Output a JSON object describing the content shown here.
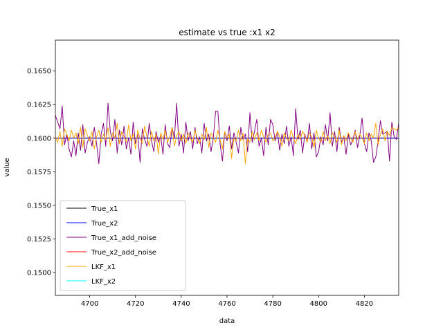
{
  "chart_data": {
    "type": "line",
    "title": "estimate vs true :x1 x2",
    "xlabel": "data",
    "ylabel": "value",
    "xlim": [
      4685,
      4835
    ],
    "ylim": [
      0.1483,
      0.1673
    ],
    "x_ticks": [
      4700,
      4720,
      4740,
      4760,
      4780,
      4800,
      4820
    ],
    "y_ticks": [
      0.15,
      0.1525,
      0.155,
      0.1575,
      0.16,
      0.1625,
      0.165
    ],
    "x_tick_labels": [
      "4700",
      "4720",
      "4740",
      "4760",
      "4780",
      "4800",
      "4820"
    ],
    "y_tick_labels": [
      "0.1500",
      "0.1525",
      "0.1550",
      "0.1575",
      "0.1600",
      "0.1625",
      "0.1650"
    ],
    "grid": false,
    "legend_placement": "lower-left",
    "x_start": 4685,
    "x_step": 1,
    "series": [
      {
        "name": "True_x1",
        "color": "#000000",
        "values": [
          0.16
        ]
      },
      {
        "name": "True_x2",
        "color": "#0000ff",
        "values": [
          0.16
        ]
      },
      {
        "name": "True_x1_add_noise",
        "color": "#800080",
        "values": [
          0.1617,
          0.1612,
          0.1607,
          0.1624,
          0.1595,
          0.1603,
          0.1592,
          0.1586,
          0.1598,
          0.1587,
          0.1604,
          0.1591,
          0.161,
          0.1589,
          0.1597,
          0.1601,
          0.1594,
          0.1608,
          0.1596,
          0.1581,
          0.1603,
          0.1611,
          0.1594,
          0.1626,
          0.1605,
          0.1598,
          0.1614,
          0.1589,
          0.1606,
          0.1595,
          0.1609,
          0.1592,
          0.16,
          0.1588,
          0.1612,
          0.1596,
          0.1603,
          0.1582,
          0.1607,
          0.1599,
          0.1594,
          0.1611,
          0.1598,
          0.159,
          0.1605,
          0.1597,
          0.1602,
          0.1588,
          0.161,
          0.1596,
          0.1593,
          0.1608,
          0.16,
          0.1626,
          0.1594,
          0.1603,
          0.1589,
          0.1612,
          0.1598,
          0.1605,
          0.1592,
          0.1608,
          0.1596,
          0.1601,
          0.1589,
          0.1611,
          0.1598,
          0.1603,
          0.159,
          0.16,
          0.162,
          0.162,
          0.1595,
          0.1583,
          0.1605,
          0.1598,
          0.1609,
          0.1592,
          0.1604,
          0.1597,
          0.1589,
          0.1608,
          0.1599,
          0.1603,
          0.159,
          0.1619,
          0.1597,
          0.1605,
          0.1614,
          0.1594,
          0.16,
          0.1587,
          0.1608,
          0.1595,
          0.1614,
          0.161,
          0.1598,
          0.1605,
          0.1591,
          0.1603,
          0.1596,
          0.1609,
          0.1594,
          0.1601,
          0.1587,
          0.1622,
          0.1599,
          0.1606,
          0.1589,
          0.1603,
          0.1597,
          0.1611,
          0.1592,
          0.1604,
          0.1586,
          0.159,
          0.1601,
          0.1595,
          0.161,
          0.1598,
          0.1619,
          0.1594,
          0.1605,
          0.159,
          0.1608,
          0.1597,
          0.1601,
          0.1588,
          0.1603,
          0.1595,
          0.1599,
          0.1606,
          0.1593,
          0.1602,
          0.1615,
          0.1596,
          0.159,
          0.1604,
          0.1598,
          0.1582,
          0.1586,
          0.1598,
          0.1613,
          0.1603,
          0.1604,
          0.1605,
          0.1583,
          0.1612,
          0.1601,
          0.1599,
          0.1611,
          0.1612
        ]
      },
      {
        "name": "True_x2_add_noise",
        "color": "#ff0000",
        "values": []
      },
      {
        "name": "LKF_x1",
        "color": "#ffa500",
        "values": [
          0.1601,
          0.1597,
          0.1605,
          0.1594,
          0.1607,
          0.1603,
          0.1598,
          0.1606,
          0.16,
          0.1604,
          0.1596,
          0.1608,
          0.1593,
          0.1607,
          0.1602,
          0.1598,
          0.1605,
          0.1592,
          0.1601,
          0.1606,
          0.1597,
          0.1603,
          0.1599,
          0.1608,
          0.1594,
          0.1604,
          0.16,
          0.1611,
          0.1596,
          0.1605,
          0.1601,
          0.1597,
          0.161,
          0.1598,
          0.1603,
          0.1592,
          0.1606,
          0.16,
          0.1596,
          0.1609,
          0.1601,
          0.1594,
          0.1605,
          0.1598,
          0.1603,
          0.1588,
          0.1604,
          0.1599,
          0.1606,
          0.1597,
          0.1601,
          0.1608,
          0.1594,
          0.1602,
          0.1605,
          0.1598,
          0.1603,
          0.1596,
          0.1604,
          0.16,
          0.1597,
          0.1606,
          0.16,
          0.1596,
          0.1603,
          0.1599,
          0.1608,
          0.1593,
          0.1604,
          0.16,
          0.1597,
          0.1606,
          0.1599,
          0.1592,
          0.1605,
          0.16,
          0.1603,
          0.1585,
          0.16,
          0.1598,
          0.1606,
          0.1598,
          0.1604,
          0.1581,
          0.16,
          0.1597,
          0.1605,
          0.1599,
          0.1604,
          0.1598,
          0.1606,
          0.1601,
          0.1597,
          0.1603,
          0.1604,
          0.1598,
          0.16,
          0.1605,
          0.1601,
          0.1594,
          0.1604,
          0.16,
          0.1598,
          0.1606,
          0.16,
          0.1596,
          0.1603,
          0.1599,
          0.1605,
          0.1602,
          0.1597,
          0.1604,
          0.1601,
          0.1593,
          0.1606,
          0.16,
          0.1597,
          0.1605,
          0.1598,
          0.1602,
          0.1596,
          0.1604,
          0.1601,
          0.1597,
          0.1606,
          0.1595,
          0.1602,
          0.1598,
          0.1604,
          0.16,
          0.1597,
          0.1605,
          0.1599,
          0.1603,
          0.16,
          0.1596,
          0.1604,
          0.1598,
          0.1603,
          0.16,
          0.1611,
          0.1595,
          0.1603,
          0.1607,
          0.1598,
          0.1605,
          0.1602,
          0.1608,
          0.1607,
          0.1606,
          0.1608
        ]
      },
      {
        "name": "LKF_x2",
        "color": "#00ffff",
        "values": []
      }
    ]
  }
}
